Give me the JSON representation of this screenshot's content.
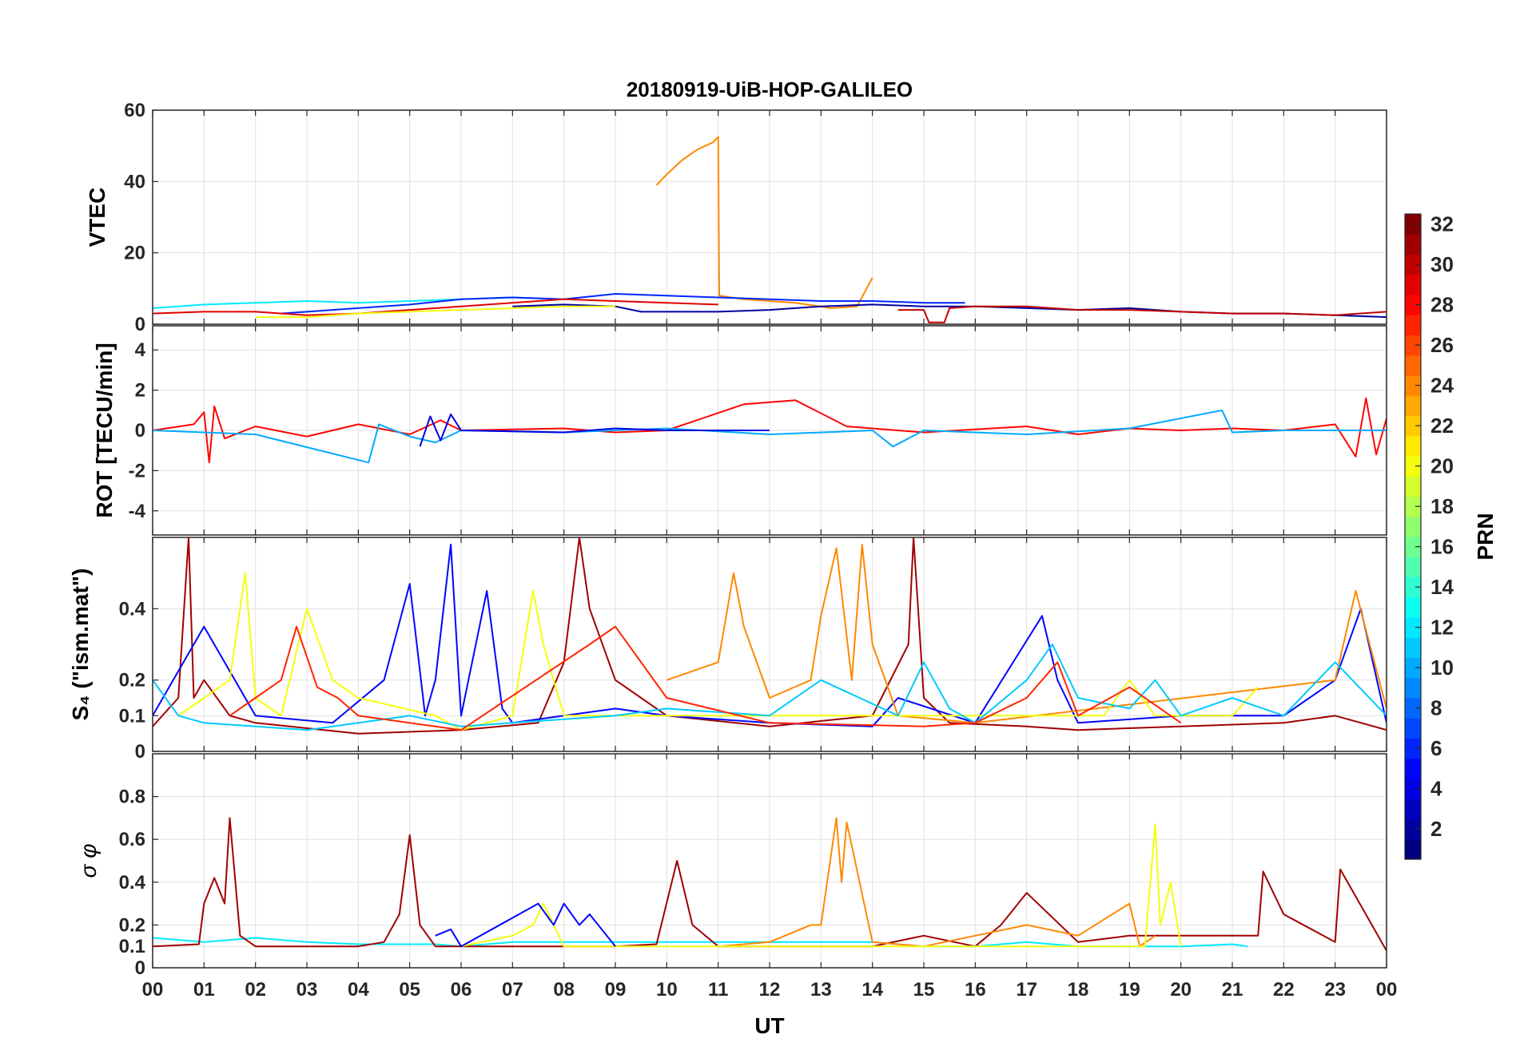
{
  "chart_data": {
    "type": "line",
    "title": "20180919-UiB-HOP-GALILEO",
    "xlabel": "UT",
    "x_range": [
      0,
      24
    ],
    "x_tick_labels": [
      "00",
      "01",
      "02",
      "03",
      "04",
      "05",
      "06",
      "07",
      "08",
      "09",
      "10",
      "11",
      "12",
      "13",
      "14",
      "15",
      "16",
      "17",
      "18",
      "19",
      "20",
      "21",
      "22",
      "23",
      "00"
    ],
    "colorbar": {
      "label": "PRN",
      "range": [
        1,
        32
      ],
      "tick_labels": [
        "2",
        "4",
        "6",
        "8",
        "10",
        "12",
        "14",
        "16",
        "18",
        "20",
        "22",
        "24",
        "26",
        "28",
        "30",
        "32"
      ],
      "colormap": "jet"
    },
    "panels": [
      {
        "id": "vtec",
        "ylabel": "VTEC",
        "ylim": [
          0,
          60
        ],
        "y_ticks": [
          0,
          20,
          40,
          60
        ],
        "y_tick_labels": [
          "0",
          "20",
          "40",
          "60"
        ],
        "series": [
          {
            "prn": 24,
            "x": [
              9.8,
              10.0,
              10.3,
              10.6,
              10.9,
              11.0,
              11.02,
              11.5,
              12.0,
              12.5,
              13.2,
              13.7,
              14.0
            ],
            "y": [
              39,
              42,
              46,
              49,
              51,
              52.5,
              8,
              7,
              6.5,
              6,
              4.5,
              5,
              13
            ]
          },
          {
            "prn": 12,
            "x": [
              0.0,
              0.5,
              1.0,
              2.0,
              3.0,
              4.0,
              5.0,
              6.0,
              7.0,
              8.0
            ],
            "y": [
              4.5,
              5,
              5.5,
              6,
              6.5,
              6,
              6.5,
              7,
              7.5,
              7
            ]
          },
          {
            "prn": 6,
            "x": [
              2.5,
              4.0,
              5.0,
              6.0,
              7.0,
              8.0,
              9.0,
              10.0,
              11.0,
              12.0,
              13.0,
              14.0,
              15.0,
              15.8
            ],
            "y": [
              3,
              4.5,
              5.5,
              7,
              7.5,
              7,
              8.5,
              8,
              7.5,
              7,
              6.5,
              6.5,
              6,
              6
            ]
          },
          {
            "prn": 29,
            "x": [
              0.0,
              1.0,
              2.0,
              3.0,
              4.0,
              5.0,
              6.0,
              7.0,
              8.0,
              9.0,
              10.0,
              11.0
            ],
            "y": [
              3,
              3.5,
              3.5,
              2.5,
              3,
              4,
              5,
              6,
              7,
              6.5,
              6,
              5.5
            ]
          },
          {
            "prn": 2,
            "x": [
              7.0,
              8.0,
              9.0,
              9.5,
              10.0,
              11.0,
              12.0,
              13.0,
              14.0,
              15.0,
              16.0,
              17.0,
              18.0,
              19.0,
              20.0,
              21.0,
              22.0,
              23.0,
              24.0
            ],
            "y": [
              5,
              5.5,
              5,
              3.5,
              3.5,
              3.5,
              4,
              5,
              5.5,
              5,
              5,
              4.5,
              4,
              4.5,
              3.5,
              3,
              3,
              2.5,
              2
            ]
          },
          {
            "prn": 30,
            "x": [
              14.5,
              15.0,
              15.1,
              15.4,
              15.5,
              16.0,
              17.0,
              18.0,
              19.0,
              20.0,
              21.0,
              22.0,
              23.0,
              24.0
            ],
            "y": [
              4,
              4,
              0.5,
              0.5,
              4.5,
              5,
              5,
              4,
              4,
              3.5,
              3,
              3,
              2.5,
              3.5
            ]
          },
          {
            "prn": 20,
            "x": [
              2.0,
              3.0,
              4.0,
              5.0,
              6.0,
              7.0,
              8.0,
              9.0
            ],
            "y": [
              2,
              2,
              3,
              3.5,
              4,
              4.5,
              5,
              5
            ]
          }
        ]
      },
      {
        "id": "rot",
        "ylabel": "ROT [TECU/min]",
        "ylim": [
          -5.2,
          5.2
        ],
        "y_ticks": [
          -4,
          -2,
          0,
          2,
          4
        ],
        "y_tick_labels": [
          "-4",
          "-2",
          "0",
          "2",
          "4"
        ],
        "series": [
          {
            "prn": 28,
            "x": [
              0.0,
              0.8,
              1.0,
              1.1,
              1.2,
              1.4,
              2.0,
              3.0,
              4.0,
              5.0,
              5.6,
              6.0,
              8.0,
              9.0,
              10.0,
              11.5,
              12.5,
              13.5,
              15.0,
              17.0,
              18.0,
              19.0,
              20.0,
              21.0,
              22.0,
              23.0,
              23.4,
              23.6,
              23.8,
              24.0
            ],
            "y": [
              0,
              0.3,
              0.9,
              -1.6,
              1.2,
              -0.4,
              0.2,
              -0.3,
              0.3,
              -0.2,
              0.5,
              0,
              0.1,
              -0.1,
              0,
              1.3,
              1.5,
              0.2,
              -0.1,
              0.2,
              -0.2,
              0.1,
              0,
              0.1,
              0,
              0.3,
              -1.3,
              1.6,
              -1.2,
              0.6
            ]
          },
          {
            "prn": 10,
            "x": [
              0.0,
              2.0,
              4.2,
              4.4,
              5.0,
              5.5,
              6.0,
              8.0,
              10.0,
              12.0,
              14.0,
              14.4,
              15.0,
              17.0,
              19.0,
              20.8,
              21.0,
              22.0,
              24.0
            ],
            "y": [
              0,
              -0.2,
              -1.6,
              0.3,
              -0.3,
              -0.6,
              0,
              -0.1,
              0.1,
              -0.2,
              0,
              -0.8,
              0,
              -0.2,
              0.1,
              1.0,
              -0.1,
              0,
              0
            ]
          },
          {
            "prn": 4,
            "x": [
              5.2,
              5.4,
              5.6,
              5.8,
              6.0,
              8.0,
              9.0,
              10.0,
              12.0
            ],
            "y": [
              -0.8,
              0.7,
              -0.5,
              0.8,
              0,
              -0.1,
              0.1,
              0,
              0
            ]
          }
        ]
      },
      {
        "id": "s4",
        "ylabel": "S₄ (\"ism.mat\")",
        "ylim": [
          0,
          0.6
        ],
        "y_ticks": [
          0,
          0.1,
          0.2,
          0.4
        ],
        "y_tick_labels": [
          "0",
          "0.1",
          "0.2",
          "0.4"
        ],
        "series": [
          {
            "prn": 31,
            "x": [
              0.0,
              0.5,
              0.7,
              0.8,
              1.0,
              1.5,
              2.0,
              4.0,
              6.0,
              7.5,
              8.0,
              8.3,
              8.5,
              9.0,
              9.5,
              10.0,
              12.0,
              14.0,
              14.7,
              14.8,
              15.0,
              15.5,
              17.0,
              18.0,
              20.0,
              22.0,
              23.0,
              24.0
            ],
            "y": [
              0.07,
              0.15,
              0.6,
              0.15,
              0.2,
              0.1,
              0.08,
              0.05,
              0.06,
              0.08,
              0.25,
              0.6,
              0.4,
              0.2,
              0.15,
              0.1,
              0.07,
              0.1,
              0.3,
              0.6,
              0.15,
              0.08,
              0.07,
              0.06,
              0.07,
              0.08,
              0.1,
              0.06
            ]
          },
          {
            "prn": 5,
            "x": [
              0.0,
              1.0,
              2.0,
              3.5,
              4.5,
              5.0,
              5.3,
              5.5,
              5.8,
              6.0,
              6.5,
              6.8,
              7.0,
              8.0,
              9.0,
              10.0,
              12.0,
              14.0,
              14.5,
              16.0,
              17.3,
              17.6,
              18.0,
              20.0,
              22.0,
              23.0,
              23.5,
              24.0
            ],
            "y": [
              0.1,
              0.35,
              0.1,
              0.08,
              0.2,
              0.47,
              0.1,
              0.2,
              0.58,
              0.1,
              0.45,
              0.12,
              0.08,
              0.1,
              0.12,
              0.1,
              0.08,
              0.07,
              0.15,
              0.08,
              0.38,
              0.2,
              0.08,
              0.1,
              0.1,
              0.2,
              0.4,
              0.08
            ]
          },
          {
            "prn": 24,
            "x": [
              10.0,
              11.0,
              11.3,
              11.5,
              12.0,
              12.8,
              13.0,
              13.3,
              13.6,
              13.8,
              14.0,
              14.5,
              16.0,
              23.0,
              23.4,
              24.0
            ],
            "y": [
              0.2,
              0.25,
              0.5,
              0.35,
              0.15,
              0.2,
              0.38,
              0.57,
              0.2,
              0.58,
              0.3,
              0.1,
              0.08,
              0.2,
              0.45,
              0.12
            ]
          },
          {
            "prn": 20,
            "x": [
              0.5,
              1.5,
              1.8,
              2.0,
              2.5,
              3.0,
              3.5,
              4.0,
              5.5,
              6.0,
              7.0,
              7.4,
              7.6,
              8.0,
              18.5,
              19.0,
              19.5,
              21.0,
              21.5
            ],
            "y": [
              0.1,
              0.2,
              0.5,
              0.15,
              0.1,
              0.4,
              0.2,
              0.15,
              0.1,
              0.06,
              0.1,
              0.45,
              0.3,
              0.1,
              0.1,
              0.2,
              0.1,
              0.1,
              0.18
            ]
          },
          {
            "prn": 11,
            "x": [
              0.0,
              0.5,
              1.0,
              2.0,
              3.0,
              4.0,
              5.0,
              6.0,
              9.0,
              10.0,
              12.0,
              13.0,
              14.5,
              15.0,
              15.5,
              16.0,
              17.0,
              17.5,
              18.0,
              19.0,
              19.5,
              20.0,
              21.0,
              22.0,
              23.0,
              24.0
            ],
            "y": [
              0.2,
              0.1,
              0.08,
              0.07,
              0.06,
              0.08,
              0.1,
              0.07,
              0.1,
              0.12,
              0.1,
              0.2,
              0.1,
              0.25,
              0.12,
              0.08,
              0.2,
              0.3,
              0.15,
              0.12,
              0.2,
              0.1,
              0.15,
              0.1,
              0.25,
              0.1
            ]
          },
          {
            "prn": 27,
            "x": [
              1.5,
              2.0,
              2.5,
              2.8,
              3.2,
              3.6,
              4.0,
              6.0,
              8.5,
              9.0,
              10.0,
              12.0,
              15.0,
              16.0,
              17.0,
              17.6,
              18.0,
              19.0,
              20.0
            ],
            "y": [
              0.1,
              0.15,
              0.2,
              0.35,
              0.18,
              0.15,
              0.1,
              0.06,
              0.3,
              0.35,
              0.15,
              0.08,
              0.07,
              0.08,
              0.15,
              0.25,
              0.1,
              0.18,
              0.08
            ]
          }
        ]
      },
      {
        "id": "sigma",
        "ylabel": "σ φ",
        "ylim": [
          0,
          1
        ],
        "y_ticks": [
          0,
          0.1,
          0.2,
          0.4,
          0.6,
          0.8
        ],
        "y_tick_labels": [
          "0",
          "0.1",
          "0.2",
          "0.4",
          "0.6",
          "0.8"
        ],
        "series": [
          {
            "prn": 12,
            "x": [
              0.0,
              1.0,
              2.0,
              3.0,
              4.0,
              5.5,
              6.0,
              7.0,
              14.0,
              15.0,
              16.0,
              17.0,
              18.0,
              20.0,
              21.0,
              21.3
            ],
            "y": [
              0.14,
              0.12,
              0.14,
              0.12,
              0.11,
              0.11,
              0.1,
              0.12,
              0.12,
              0.1,
              0.1,
              0.12,
              0.1,
              0.1,
              0.11,
              0.1
            ]
          },
          {
            "prn": 31,
            "x": [
              0.0,
              0.9,
              1.0,
              1.2,
              1.4,
              1.5,
              1.7,
              2.0,
              3.0,
              4.0,
              4.5,
              4.8,
              5.0,
              5.2,
              5.5,
              8.0,
              9.0,
              9.8,
              10.2,
              10.5,
              11.0,
              14.0,
              15.0,
              16.0,
              16.5,
              17.0,
              18.0,
              19.0,
              21.5,
              21.6,
              22.0,
              23.0,
              23.1,
              24.0
            ],
            "y": [
              0.1,
              0.11,
              0.3,
              0.42,
              0.3,
              0.7,
              0.15,
              0.1,
              0.1,
              0.1,
              0.12,
              0.25,
              0.62,
              0.2,
              0.1,
              0.1,
              0.1,
              0.11,
              0.5,
              0.2,
              0.1,
              0.1,
              0.15,
              0.1,
              0.2,
              0.35,
              0.12,
              0.15,
              0.15,
              0.45,
              0.25,
              0.12,
              0.46,
              0.08
            ]
          },
          {
            "prn": 24,
            "x": [
              11.0,
              12.0,
              12.8,
              13.0,
              13.3,
              13.4,
              13.5,
              14.0,
              15.0,
              17.0,
              18.0,
              19.0,
              19.2,
              19.5
            ],
            "y": [
              0.1,
              0.12,
              0.2,
              0.2,
              0.7,
              0.4,
              0.68,
              0.12,
              0.1,
              0.2,
              0.15,
              0.3,
              0.1,
              0.15
            ]
          },
          {
            "prn": 20,
            "x": [
              6.0,
              7.0,
              7.4,
              7.6,
              8.0,
              19.3,
              19.5,
              19.6,
              19.8,
              20.0
            ],
            "y": [
              0.1,
              0.15,
              0.2,
              0.3,
              0.1,
              0.1,
              0.67,
              0.2,
              0.4,
              0.1
            ]
          },
          {
            "prn": 5,
            "x": [
              5.5,
              5.8,
              6.0,
              7.5,
              7.8,
              8.0,
              8.3,
              8.5,
              9.0
            ],
            "y": [
              0.15,
              0.18,
              0.1,
              0.3,
              0.2,
              0.3,
              0.2,
              0.25,
              0.1
            ]
          }
        ]
      }
    ]
  }
}
